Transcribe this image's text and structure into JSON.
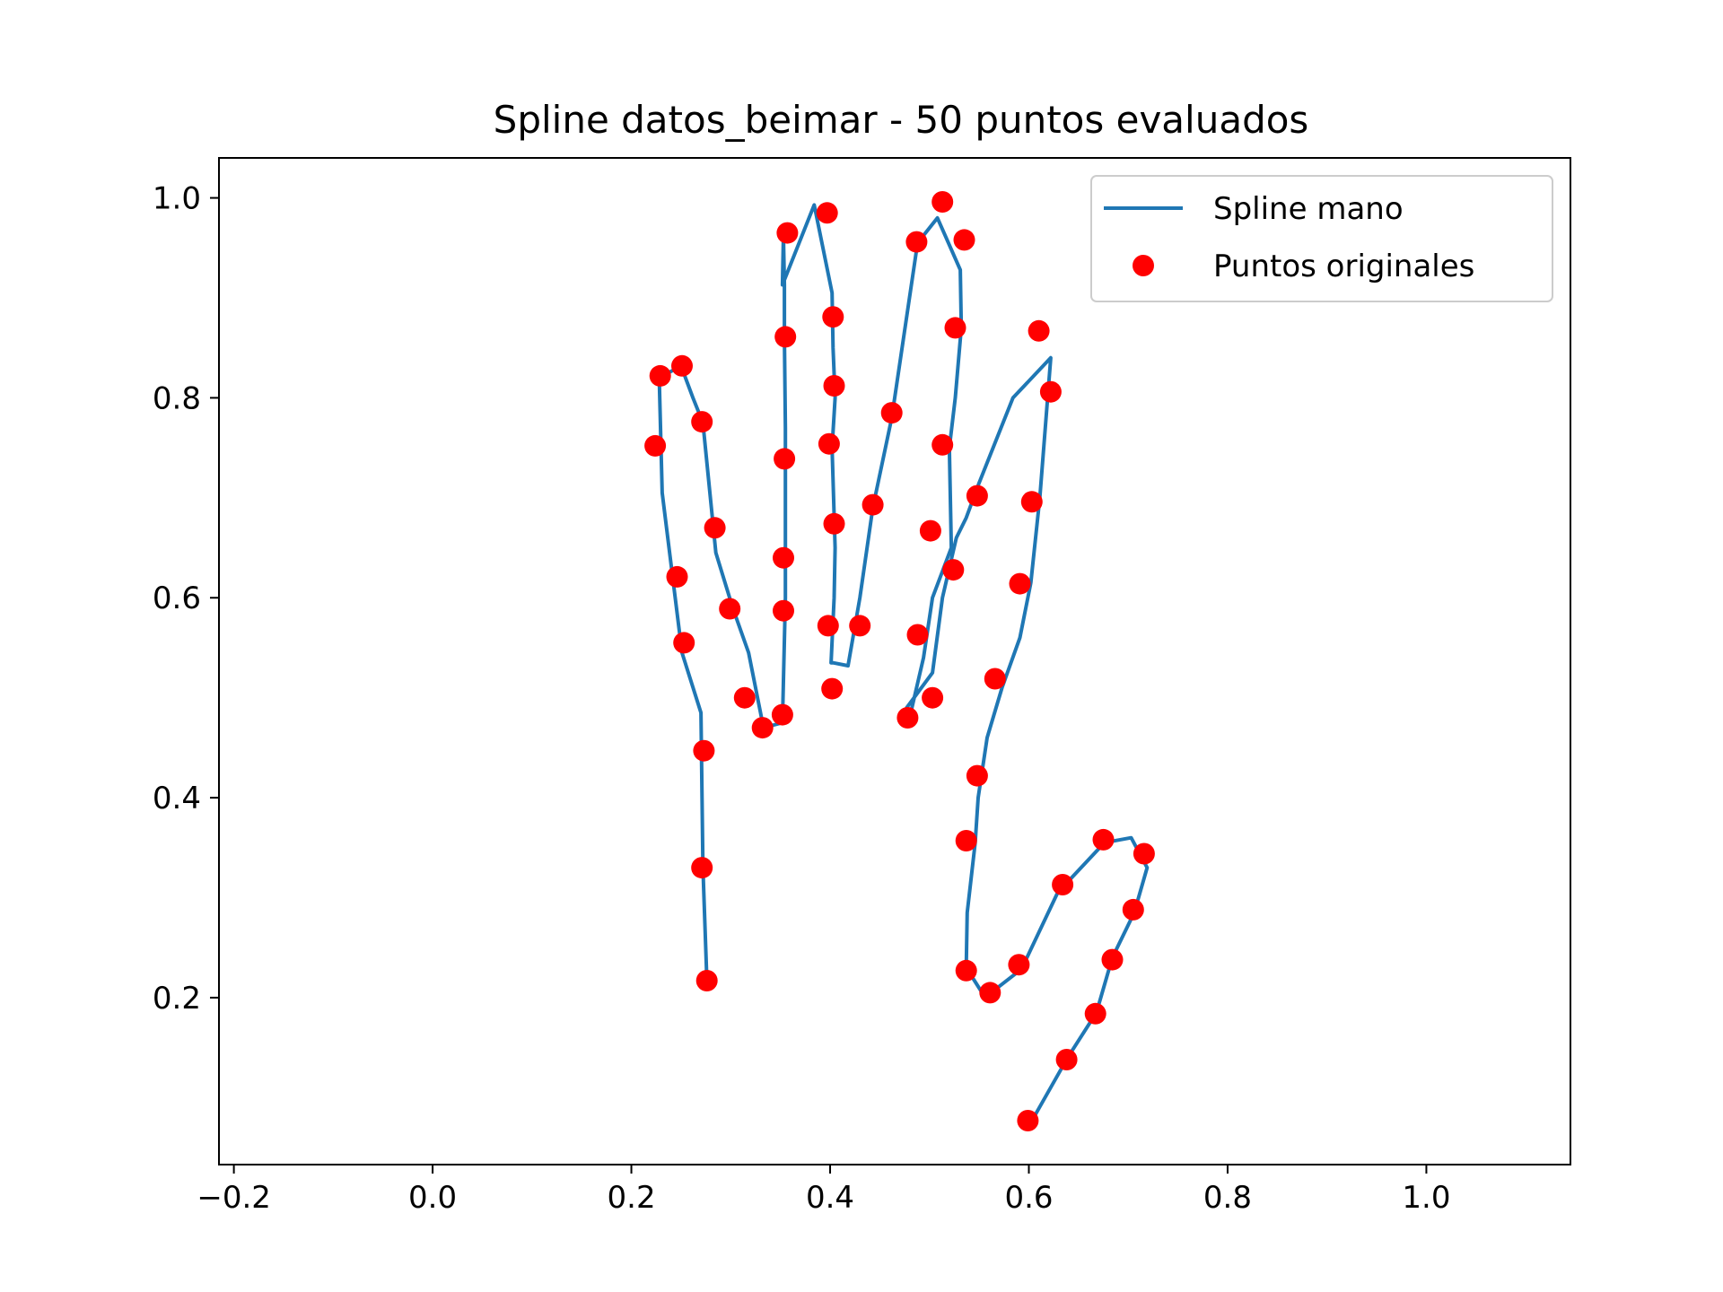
{
  "chart_data": {
    "type": "line",
    "title": "Spline datos_beimar - 50 puntos evaluados",
    "xlabel": "",
    "ylabel": "",
    "xlim": [
      -0.215,
      1.145
    ],
    "ylim": [
      0.033,
      1.04
    ],
    "x_ticks": [
      -0.2,
      0.0,
      0.2,
      0.4,
      0.6,
      0.8,
      1.0
    ],
    "x_tick_labels": [
      "−0.2",
      "0.0",
      "0.2",
      "0.4",
      "0.6",
      "0.8",
      "1.0"
    ],
    "y_ticks": [
      0.2,
      0.4,
      0.6,
      0.8,
      1.0
    ],
    "y_tick_labels": [
      "0.2",
      "0.4",
      "0.6",
      "0.8",
      "1.0"
    ],
    "grid": false,
    "legend_position": "top-right",
    "series": [
      {
        "name": "Spline mano",
        "kind": "line",
        "color": "#1f77b4",
        "x": [
          0.276,
          0.272,
          0.27,
          0.251,
          0.231,
          0.228,
          0.25,
          0.262,
          0.272,
          0.285,
          0.302,
          0.318,
          0.333,
          0.352,
          0.355,
          0.355,
          0.354,
          0.354,
          0.353,
          0.352,
          0.384,
          0.402,
          0.403,
          0.405,
          0.402,
          0.405,
          0.404,
          0.401,
          0.403,
          0.418,
          0.43,
          0.443,
          0.462,
          0.488,
          0.508,
          0.531,
          0.532,
          0.526,
          0.52,
          0.522,
          0.503,
          0.494,
          0.48,
          0.477,
          0.503,
          0.513,
          0.527,
          0.537,
          0.55,
          0.584,
          0.622,
          0.611,
          0.602,
          0.591,
          0.573,
          0.558,
          0.549,
          0.546,
          0.538,
          0.537,
          0.553,
          0.562,
          0.588,
          0.598,
          0.629,
          0.676,
          0.703,
          0.719,
          0.706,
          0.684,
          0.668,
          0.639,
          0.602
        ],
        "y": [
          0.217,
          0.33,
          0.485,
          0.545,
          0.705,
          0.82,
          0.832,
          0.8,
          0.775,
          0.645,
          0.59,
          0.545,
          0.47,
          0.475,
          0.6,
          0.77,
          0.86,
          0.913,
          0.963,
          0.913,
          0.993,
          0.905,
          0.85,
          0.8,
          0.75,
          0.65,
          0.6,
          0.535,
          0.535,
          0.532,
          0.6,
          0.69,
          0.78,
          0.955,
          0.98,
          0.928,
          0.87,
          0.8,
          0.75,
          0.65,
          0.6,
          0.54,
          0.48,
          0.49,
          0.525,
          0.6,
          0.66,
          0.68,
          0.715,
          0.8,
          0.84,
          0.7,
          0.615,
          0.56,
          0.51,
          0.46,
          0.4,
          0.355,
          0.285,
          0.23,
          0.205,
          0.205,
          0.225,
          0.24,
          0.305,
          0.355,
          0.36,
          0.33,
          0.285,
          0.24,
          0.185,
          0.14,
          0.075
        ]
      },
      {
        "name": "Puntos originales",
        "kind": "scatter",
        "color": "#ff0000",
        "x": [
          0.276,
          0.271,
          0.273,
          0.253,
          0.246,
          0.224,
          0.229,
          0.251,
          0.271,
          0.284,
          0.299,
          0.314,
          0.332,
          0.352,
          0.353,
          0.353,
          0.354,
          0.355,
          0.357,
          0.397,
          0.403,
          0.404,
          0.399,
          0.404,
          0.398,
          0.402,
          0.43,
          0.443,
          0.462,
          0.487,
          0.513,
          0.535,
          0.526,
          0.513,
          0.524,
          0.501,
          0.488,
          0.478,
          0.503,
          0.548,
          0.61,
          0.622,
          0.603,
          0.591,
          0.566,
          0.548,
          0.537,
          0.537,
          0.561,
          0.59,
          0.634,
          0.675,
          0.716,
          0.705,
          0.684,
          0.667,
          0.638,
          0.599
        ],
        "y": [
          0.217,
          0.33,
          0.447,
          0.555,
          0.621,
          0.752,
          0.822,
          0.832,
          0.776,
          0.67,
          0.589,
          0.5,
          0.47,
          0.483,
          0.587,
          0.64,
          0.739,
          0.861,
          0.965,
          0.985,
          0.881,
          0.812,
          0.754,
          0.674,
          0.572,
          0.509,
          0.572,
          0.693,
          0.785,
          0.956,
          0.996,
          0.958,
          0.87,
          0.753,
          0.628,
          0.667,
          0.563,
          0.48,
          0.5,
          0.702,
          0.867,
          0.806,
          0.696,
          0.614,
          0.519,
          0.422,
          0.357,
          0.227,
          0.205,
          0.233,
          0.313,
          0.358,
          0.344,
          0.288,
          0.238,
          0.184,
          0.138,
          0.077
        ]
      }
    ]
  }
}
